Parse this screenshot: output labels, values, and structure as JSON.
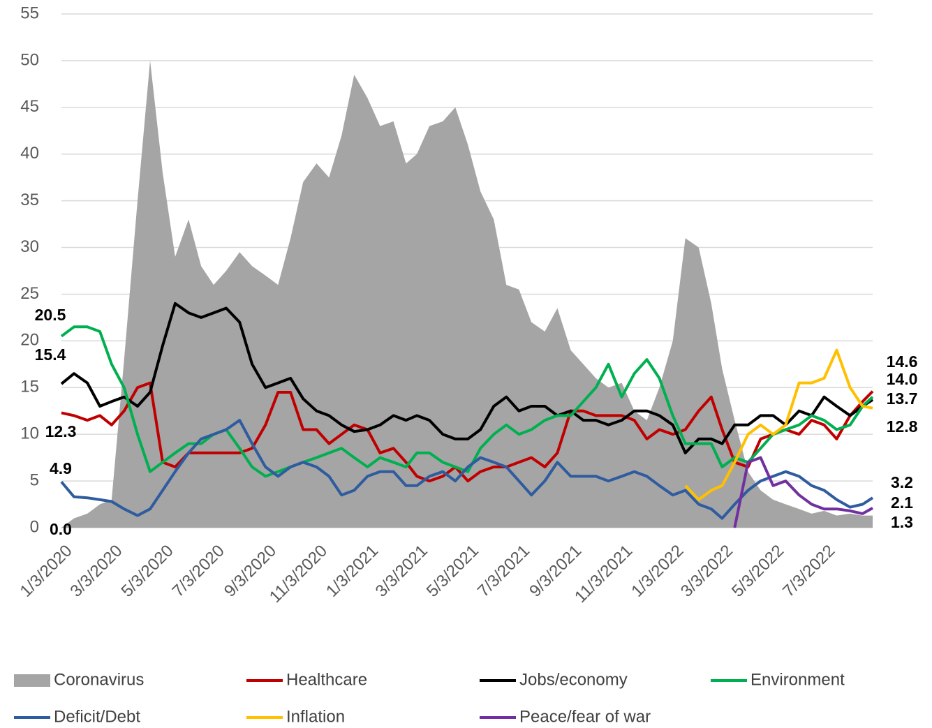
{
  "chart_data": {
    "type": "line",
    "x": [
      "1/3/2020",
      "1/18/2020",
      "2/3/2020",
      "2/18/2020",
      "3/3/2020",
      "3/18/2020",
      "4/3/2020",
      "4/18/2020",
      "5/3/2020",
      "5/18/2020",
      "6/3/2020",
      "6/18/2020",
      "7/3/2020",
      "7/18/2020",
      "8/3/2020",
      "8/18/2020",
      "9/3/2020",
      "9/18/2020",
      "10/3/2020",
      "10/18/2020",
      "11/3/2020",
      "11/18/2020",
      "12/3/2020",
      "12/18/2020",
      "1/3/2021",
      "1/18/2021",
      "2/3/2021",
      "2/18/2021",
      "3/3/2021",
      "3/18/2021",
      "4/3/2021",
      "4/18/2021",
      "5/3/2021",
      "5/18/2021",
      "6/3/2021",
      "6/18/2021",
      "7/3/2021",
      "7/18/2021",
      "8/3/2021",
      "8/18/2021",
      "9/3/2021",
      "9/18/2021",
      "10/3/2021",
      "10/18/2021",
      "11/3/2021",
      "11/18/2021",
      "12/3/2021",
      "12/18/2021",
      "1/3/2022",
      "1/18/2022",
      "2/3/2022",
      "2/18/2022",
      "3/3/2022",
      "3/18/2022",
      "4/3/2022",
      "4/18/2022",
      "5/3/2022",
      "5/18/2022",
      "6/3/2022",
      "6/18/2022",
      "7/3/2022",
      "7/18/2022",
      "8/3/2022",
      "8/18/2022",
      "8/30/2022"
    ],
    "xlim": [
      "1/3/2020",
      "8/30/2022"
    ],
    "xticks": [
      "1/3/2020",
      "3/3/2020",
      "5/3/2020",
      "7/3/2020",
      "9/3/2020",
      "11/3/2020",
      "1/3/2021",
      "3/3/2021",
      "5/3/2021",
      "7/3/2021",
      "9/3/2021",
      "11/3/2021",
      "1/3/2022",
      "3/3/2022",
      "5/3/2022",
      "7/3/2022"
    ],
    "ylim": [
      0,
      55
    ],
    "yticks": [
      0,
      5,
      10,
      15,
      20,
      25,
      30,
      35,
      40,
      45,
      50,
      55
    ],
    "grid": true,
    "series": [
      {
        "name": "Coronavirus",
        "kind": "area",
        "color": "#a5a5a5",
        "values": [
          0,
          1,
          1.5,
          2.5,
          3,
          18,
          35,
          50,
          38,
          29,
          33,
          28,
          26,
          27.5,
          29.5,
          28,
          27,
          26,
          31,
          37,
          39,
          37.5,
          42,
          48.5,
          46,
          43,
          43.5,
          39,
          40,
          43,
          43.5,
          45,
          41,
          36,
          33,
          26,
          25.5,
          22,
          21,
          23.5,
          19,
          17.5,
          16,
          15,
          15.5,
          12.5,
          11.5,
          15,
          20,
          31,
          30,
          24,
          17,
          11.5,
          6,
          4,
          3,
          2.5,
          2,
          1.5,
          1.8,
          1.3,
          1.5,
          1.3,
          1.3
        ],
        "value_labels": {
          "0": "0.0",
          "64": "1.3"
        }
      },
      {
        "name": "Healthcare",
        "kind": "line",
        "color": "#c00000",
        "values": [
          12.3,
          12,
          11.5,
          12,
          11,
          12.5,
          15,
          15.5,
          7,
          6.5,
          8,
          8,
          8,
          8,
          8,
          8.5,
          11,
          14.5,
          14.5,
          10.5,
          10.5,
          9,
          10,
          11,
          10.5,
          8,
          8.5,
          7,
          5.5,
          5,
          5.5,
          6.5,
          5,
          6,
          6.5,
          6.5,
          7,
          7.5,
          6.5,
          8,
          12.5,
          12.5,
          12,
          12,
          12,
          11.5,
          9.5,
          10.5,
          10,
          10.5,
          12.5,
          14,
          10.5,
          7,
          6.5,
          9.5,
          10,
          10.5,
          10,
          11.5,
          11,
          9.5,
          12,
          13.5,
          14.6
        ],
        "value_labels": {
          "0": "12.3",
          "64": "14.6"
        }
      },
      {
        "name": "Jobs/economy",
        "kind": "line",
        "color": "#000000",
        "values": [
          15.4,
          16.5,
          15.5,
          13,
          13.5,
          14,
          13,
          14.5,
          19.5,
          24,
          23,
          22.5,
          23,
          23.5,
          22,
          17.5,
          15,
          15.5,
          16,
          13.8,
          12.5,
          12,
          11,
          10.3,
          10.5,
          11,
          12,
          11.5,
          12,
          11.5,
          10,
          9.5,
          9.5,
          10.5,
          13,
          14,
          12.5,
          13,
          13,
          12,
          12.5,
          11.5,
          11.5,
          11,
          11.5,
          12.5,
          12.5,
          12,
          11,
          8,
          9.5,
          9.5,
          9,
          11,
          11,
          12,
          12,
          11,
          12.5,
          12,
          14,
          13,
          12,
          13,
          13.7
        ],
        "value_labels": {
          "0": "15.4",
          "64": "13.7"
        }
      },
      {
        "name": "Environment",
        "kind": "line",
        "color": "#00b050",
        "values": [
          20.5,
          21.5,
          21.5,
          21,
          17.5,
          15,
          10,
          6,
          7,
          8,
          9,
          9,
          10,
          10.5,
          8.5,
          6.5,
          5.5,
          6,
          6.5,
          7,
          7.5,
          8,
          8.5,
          7.5,
          6.5,
          7.5,
          7,
          6.5,
          8,
          8,
          7,
          6.5,
          6,
          8.5,
          10,
          11,
          10,
          10.5,
          11.5,
          12,
          12,
          13.5,
          15,
          17.5,
          14,
          16.5,
          18,
          16,
          12,
          9,
          9,
          9,
          6.5,
          7.5,
          7,
          8.5,
          10,
          10.5,
          11,
          12,
          11.5,
          10.5,
          11,
          13,
          14.0
        ],
        "value_labels": {
          "0": "20.5",
          "64": "14.0"
        }
      },
      {
        "name": "Deficit/Debt",
        "kind": "line",
        "color": "#2e5c9e",
        "values": [
          4.9,
          3.3,
          3.2,
          3,
          2.8,
          2,
          1.3,
          2,
          4,
          6,
          8,
          9.5,
          10,
          10.5,
          11.5,
          9,
          6.5,
          5.5,
          6.5,
          7,
          6.5,
          5.5,
          3.5,
          4,
          5.5,
          6,
          6,
          4.5,
          4.5,
          5.5,
          6,
          5,
          6.5,
          7.5,
          7,
          6.5,
          5,
          3.5,
          5,
          7,
          5.5,
          5.5,
          5.5,
          5,
          5.5,
          6,
          5.5,
          4.5,
          3.5,
          4,
          2.5,
          2,
          1,
          2.5,
          4,
          5,
          5.5,
          6,
          5.5,
          4.5,
          4,
          3,
          2.2,
          2.5,
          3.2
        ],
        "value_labels": {
          "0": "4.9",
          "64": "3.2"
        }
      },
      {
        "name": "Inflation",
        "kind": "line",
        "color": "#ffc000",
        "values": [
          null,
          null,
          null,
          null,
          null,
          null,
          null,
          null,
          null,
          null,
          null,
          null,
          null,
          null,
          null,
          null,
          null,
          null,
          null,
          null,
          null,
          null,
          null,
          null,
          null,
          null,
          null,
          null,
          null,
          null,
          null,
          null,
          null,
          null,
          null,
          null,
          null,
          null,
          null,
          null,
          null,
          null,
          null,
          null,
          null,
          null,
          null,
          null,
          null,
          4.5,
          3,
          4,
          4.5,
          7,
          10,
          11,
          10,
          11,
          15.5,
          15.5,
          16,
          19,
          15,
          13,
          12.8
        ],
        "value_labels": {
          "64": "12.8"
        }
      },
      {
        "name": "Peace/fear of war",
        "kind": "line",
        "color": "#7030a0",
        "values": [
          null,
          null,
          null,
          null,
          null,
          null,
          null,
          null,
          null,
          null,
          null,
          null,
          null,
          null,
          null,
          null,
          null,
          null,
          null,
          null,
          null,
          null,
          null,
          null,
          null,
          null,
          null,
          null,
          null,
          null,
          null,
          null,
          null,
          null,
          null,
          null,
          null,
          null,
          null,
          null,
          null,
          null,
          null,
          null,
          null,
          null,
          null,
          null,
          null,
          null,
          null,
          null,
          null,
          0,
          7,
          7.5,
          4.5,
          5,
          3.5,
          2.5,
          2,
          2,
          1.8,
          1.5,
          2.1
        ],
        "value_labels": {
          "64": "2.1"
        }
      }
    ]
  }
}
